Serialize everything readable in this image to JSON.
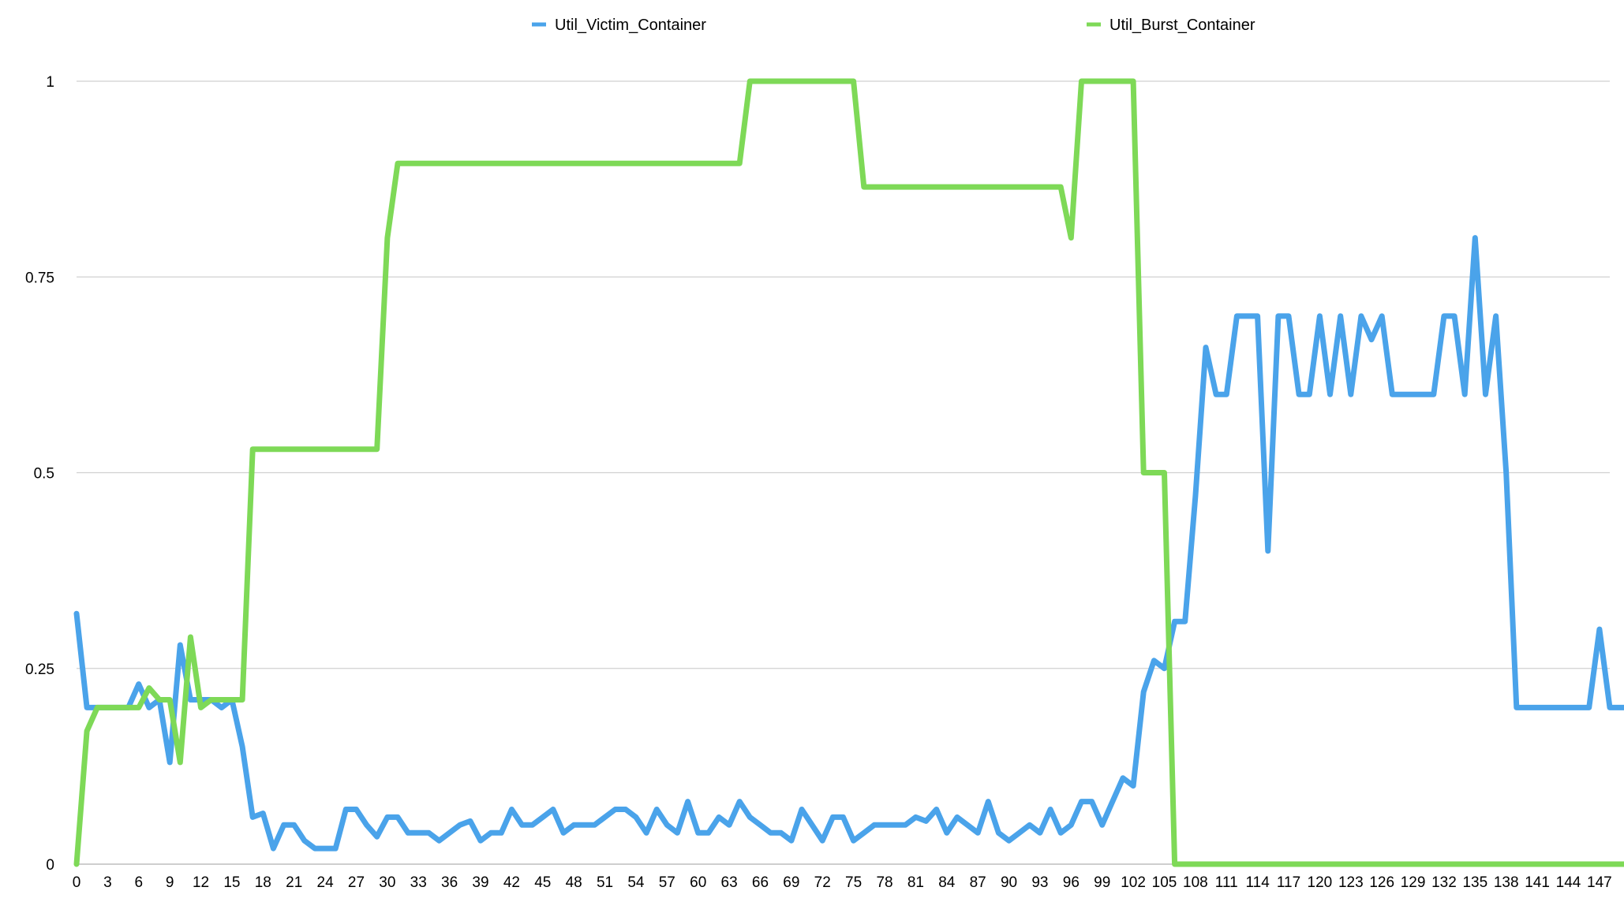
{
  "chart_data": {
    "type": "line",
    "title": "",
    "xlabel": "",
    "ylabel": "",
    "xlim": [
      0,
      148
    ],
    "ylim": [
      0,
      1
    ],
    "grid": true,
    "legend_position": "top-center",
    "y_ticks": [
      "0",
      "0.25",
      "0.5",
      "0.75",
      "1"
    ],
    "x_tick_step": 3,
    "series": [
      {
        "name": "Util_Victim_Container",
        "color": "#4aa3ea",
        "values": [
          0.32,
          0.2,
          0.2,
          0.2,
          0.2,
          0.2,
          0.23,
          0.2,
          0.21,
          0.13,
          0.28,
          0.21,
          0.21,
          0.21,
          0.2,
          0.21,
          0.15,
          0.06,
          0.065,
          0.02,
          0.05,
          0.05,
          0.03,
          0.02,
          0.02,
          0.02,
          0.07,
          0.07,
          0.05,
          0.035,
          0.06,
          0.06,
          0.04,
          0.04,
          0.04,
          0.03,
          0.04,
          0.05,
          0.055,
          0.03,
          0.04,
          0.04,
          0.07,
          0.05,
          0.05,
          0.06,
          0.07,
          0.04,
          0.05,
          0.05,
          0.05,
          0.06,
          0.07,
          0.07,
          0.06,
          0.04,
          0.07,
          0.05,
          0.04,
          0.08,
          0.04,
          0.04,
          0.06,
          0.05,
          0.08,
          0.06,
          0.05,
          0.04,
          0.04,
          0.03,
          0.07,
          0.05,
          0.03,
          0.06,
          0.06,
          0.03,
          0.04,
          0.05,
          0.05,
          0.05,
          0.05,
          0.06,
          0.055,
          0.07,
          0.04,
          0.06,
          0.05,
          0.04,
          0.08,
          0.04,
          0.03,
          0.04,
          0.05,
          0.04,
          0.07,
          0.04,
          0.05,
          0.08,
          0.08,
          0.05,
          0.08,
          0.11,
          0.1,
          0.22,
          0.26,
          0.25,
          0.31,
          0.31,
          0.47,
          0.66,
          0.6,
          0.6,
          0.7,
          0.7,
          0.7,
          0.4,
          0.7,
          0.7,
          0.6,
          0.6,
          0.7,
          0.6,
          0.7,
          0.6,
          0.7,
          0.67,
          0.7,
          0.6,
          0.6,
          0.6,
          0.6,
          0.6,
          0.7,
          0.7,
          0.6,
          0.8,
          0.6,
          0.7,
          0.5,
          0.2,
          0.2,
          0.2,
          0.2,
          0.2,
          0.2,
          0.2,
          0.2,
          0.3,
          0.2,
          0.2,
          0.2,
          0.22,
          0.2
        ]
      },
      {
        "name": "Util_Burst_Container",
        "color": "#7ed957",
        "values": [
          0.0,
          0.17,
          0.2,
          0.2,
          0.2,
          0.2,
          0.2,
          0.225,
          0.21,
          0.21,
          0.13,
          0.29,
          0.2,
          0.21,
          0.21,
          0.21,
          0.21,
          0.53,
          0.53,
          0.53,
          0.53,
          0.53,
          0.53,
          0.53,
          0.53,
          0.53,
          0.53,
          0.53,
          0.53,
          0.53,
          0.8,
          0.895,
          0.895,
          0.895,
          0.895,
          0.895,
          0.895,
          0.895,
          0.895,
          0.895,
          0.895,
          0.895,
          0.895,
          0.895,
          0.895,
          0.895,
          0.895,
          0.895,
          0.895,
          0.895,
          0.895,
          0.895,
          0.895,
          0.895,
          0.895,
          0.895,
          0.895,
          0.895,
          0.895,
          0.895,
          0.895,
          0.895,
          0.895,
          0.895,
          0.895,
          1.0,
          1.0,
          1.0,
          1.0,
          1.0,
          1.0,
          1.0,
          1.0,
          1.0,
          1.0,
          1.0,
          0.865,
          0.865,
          0.865,
          0.865,
          0.865,
          0.865,
          0.865,
          0.865,
          0.865,
          0.865,
          0.865,
          0.865,
          0.865,
          0.865,
          0.865,
          0.865,
          0.865,
          0.865,
          0.865,
          0.865,
          0.8,
          1.0,
          1.0,
          1.0,
          1.0,
          1.0,
          1.0,
          0.5,
          0.5,
          0.5,
          0.0,
          0.0,
          0.0,
          0.0,
          0.0,
          0.0,
          0.0,
          0.0,
          0.0,
          0.0,
          0.0,
          0.0,
          0.0,
          0.0,
          0.0,
          0.0,
          0.0,
          0.0,
          0.0,
          0.0,
          0.0,
          0.0,
          0.0,
          0.0,
          0.0,
          0.0,
          0.0,
          0.0,
          0.0,
          0.0,
          0.0,
          0.0,
          0.0,
          0.0,
          0.0,
          0.0,
          0.0,
          0.0,
          0.0,
          0.0,
          0.0,
          0.0,
          0.0,
          0.0,
          0.0,
          0.0,
          0.0,
          0.0,
          0.0
        ]
      }
    ]
  }
}
